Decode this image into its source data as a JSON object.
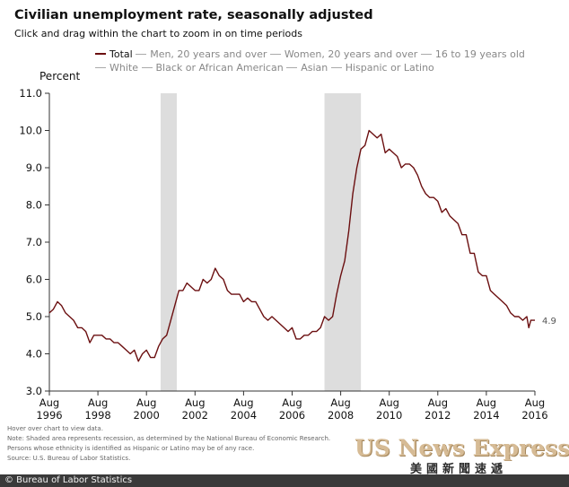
{
  "title": "Civilian unemployment rate, seasonally adjusted",
  "subtitle": "Click and drag within the chart to zoom in on time periods",
  "legend": {
    "row1": [
      {
        "label": "Total",
        "active": true
      },
      {
        "label": "Men, 20 years and over",
        "active": false
      },
      {
        "label": "Women, 20 years and over",
        "active": false
      },
      {
        "label": "16 to 19 years old",
        "active": false
      }
    ],
    "row2": [
      {
        "label": "White",
        "active": false
      },
      {
        "label": "Black or African American",
        "active": false
      },
      {
        "label": "Asian",
        "active": false
      },
      {
        "label": "Hispanic or Latino",
        "active": false
      }
    ]
  },
  "notes": [
    "Hover over chart to view data.",
    "Note: Shaded area represents recession, as determined by the National Bureau of Economic Research.",
    "Persons whose ethnicity is identified as Hispanic or Latino may be of any race.",
    "Source: U.S. Bureau of Labor Statistics."
  ],
  "credit": "© Bureau of Labor Statistics",
  "watermark": {
    "en": "US News Express",
    "cn": "美國新聞速遞"
  },
  "colors": {
    "line": "#6b0f10",
    "recession": "#dddddd",
    "grid": "#cccccc"
  },
  "chart_data": {
    "type": "line",
    "ylabel": "Percent",
    "xlabel": "",
    "ylim": [
      3.0,
      11.0
    ],
    "yticks": [
      "3.0",
      "4.0",
      "5.0",
      "6.0",
      "7.0",
      "8.0",
      "9.0",
      "10.0",
      "11.0"
    ],
    "xlim": [
      "1996-08",
      "2016-08"
    ],
    "xticks": [
      {
        "date": "1996-08",
        "month": "Aug",
        "year": "1996"
      },
      {
        "date": "1998-08",
        "month": "Aug",
        "year": "1998"
      },
      {
        "date": "2000-08",
        "month": "Aug",
        "year": "2000"
      },
      {
        "date": "2002-08",
        "month": "Aug",
        "year": "2002"
      },
      {
        "date": "2004-08",
        "month": "Aug",
        "year": "2004"
      },
      {
        "date": "2006-08",
        "month": "Aug",
        "year": "2006"
      },
      {
        "date": "2008-08",
        "month": "Aug",
        "year": "2008"
      },
      {
        "date": "2010-08",
        "month": "Aug",
        "year": "2010"
      },
      {
        "date": "2012-08",
        "month": "Aug",
        "year": "2012"
      },
      {
        "date": "2014-08",
        "month": "Aug",
        "year": "2014"
      },
      {
        "date": "2016-08",
        "month": "Aug",
        "year": "2016"
      }
    ],
    "recessions": [
      [
        "2001-03",
        "2001-11"
      ],
      [
        "2007-12",
        "2009-06"
      ]
    ],
    "series": [
      {
        "name": "Total",
        "end_label": "4.9",
        "points": [
          [
            "1996-08",
            5.1
          ],
          [
            "1996-10",
            5.2
          ],
          [
            "1996-12",
            5.4
          ],
          [
            "1997-02",
            5.3
          ],
          [
            "1997-04",
            5.1
          ],
          [
            "1997-06",
            5.0
          ],
          [
            "1997-08",
            4.9
          ],
          [
            "1997-10",
            4.7
          ],
          [
            "1997-12",
            4.7
          ],
          [
            "1998-02",
            4.6
          ],
          [
            "1998-04",
            4.3
          ],
          [
            "1998-06",
            4.5
          ],
          [
            "1998-08",
            4.5
          ],
          [
            "1998-10",
            4.5
          ],
          [
            "1998-12",
            4.4
          ],
          [
            "1999-02",
            4.4
          ],
          [
            "1999-04",
            4.3
          ],
          [
            "1999-06",
            4.3
          ],
          [
            "1999-08",
            4.2
          ],
          [
            "1999-10",
            4.1
          ],
          [
            "1999-12",
            4.0
          ],
          [
            "2000-02",
            4.1
          ],
          [
            "2000-04",
            3.8
          ],
          [
            "2000-06",
            4.0
          ],
          [
            "2000-08",
            4.1
          ],
          [
            "2000-10",
            3.9
          ],
          [
            "2000-12",
            3.9
          ],
          [
            "2001-02",
            4.2
          ],
          [
            "2001-04",
            4.4
          ],
          [
            "2001-06",
            4.5
          ],
          [
            "2001-08",
            4.9
          ],
          [
            "2001-10",
            5.3
          ],
          [
            "2001-12",
            5.7
          ],
          [
            "2002-02",
            5.7
          ],
          [
            "2002-04",
            5.9
          ],
          [
            "2002-06",
            5.8
          ],
          [
            "2002-08",
            5.7
          ],
          [
            "2002-10",
            5.7
          ],
          [
            "2002-12",
            6.0
          ],
          [
            "2003-02",
            5.9
          ],
          [
            "2003-04",
            6.0
          ],
          [
            "2003-06",
            6.3
          ],
          [
            "2003-08",
            6.1
          ],
          [
            "2003-10",
            6.0
          ],
          [
            "2003-12",
            5.7
          ],
          [
            "2004-02",
            5.6
          ],
          [
            "2004-04",
            5.6
          ],
          [
            "2004-06",
            5.6
          ],
          [
            "2004-08",
            5.4
          ],
          [
            "2004-10",
            5.5
          ],
          [
            "2004-12",
            5.4
          ],
          [
            "2005-02",
            5.4
          ],
          [
            "2005-04",
            5.2
          ],
          [
            "2005-06",
            5.0
          ],
          [
            "2005-08",
            4.9
          ],
          [
            "2005-10",
            5.0
          ],
          [
            "2005-12",
            4.9
          ],
          [
            "2006-02",
            4.8
          ],
          [
            "2006-04",
            4.7
          ],
          [
            "2006-06",
            4.6
          ],
          [
            "2006-08",
            4.7
          ],
          [
            "2006-10",
            4.4
          ],
          [
            "2006-12",
            4.4
          ],
          [
            "2007-02",
            4.5
          ],
          [
            "2007-04",
            4.5
          ],
          [
            "2007-06",
            4.6
          ],
          [
            "2007-08",
            4.6
          ],
          [
            "2007-10",
            4.7
          ],
          [
            "2007-12",
            5.0
          ],
          [
            "2008-02",
            4.9
          ],
          [
            "2008-04",
            5.0
          ],
          [
            "2008-06",
            5.6
          ],
          [
            "2008-08",
            6.1
          ],
          [
            "2008-10",
            6.5
          ],
          [
            "2008-12",
            7.3
          ],
          [
            "2009-02",
            8.3
          ],
          [
            "2009-04",
            9.0
          ],
          [
            "2009-06",
            9.5
          ],
          [
            "2009-08",
            9.6
          ],
          [
            "2009-10",
            10.0
          ],
          [
            "2009-12",
            9.9
          ],
          [
            "2010-02",
            9.8
          ],
          [
            "2010-04",
            9.9
          ],
          [
            "2010-06",
            9.4
          ],
          [
            "2010-08",
            9.5
          ],
          [
            "2010-10",
            9.4
          ],
          [
            "2010-12",
            9.3
          ],
          [
            "2011-02",
            9.0
          ],
          [
            "2011-04",
            9.1
          ],
          [
            "2011-06",
            9.1
          ],
          [
            "2011-08",
            9.0
          ],
          [
            "2011-10",
            8.8
          ],
          [
            "2011-12",
            8.5
          ],
          [
            "2012-02",
            8.3
          ],
          [
            "2012-04",
            8.2
          ],
          [
            "2012-06",
            8.2
          ],
          [
            "2012-08",
            8.1
          ],
          [
            "2012-10",
            7.8
          ],
          [
            "2012-12",
            7.9
          ],
          [
            "2013-02",
            7.7
          ],
          [
            "2013-04",
            7.6
          ],
          [
            "2013-06",
            7.5
          ],
          [
            "2013-08",
            7.2
          ],
          [
            "2013-10",
            7.2
          ],
          [
            "2013-12",
            6.7
          ],
          [
            "2014-02",
            6.7
          ],
          [
            "2014-04",
            6.2
          ],
          [
            "2014-06",
            6.1
          ],
          [
            "2014-08",
            6.1
          ],
          [
            "2014-10",
            5.7
          ],
          [
            "2014-12",
            5.6
          ],
          [
            "2015-02",
            5.5
          ],
          [
            "2015-04",
            5.4
          ],
          [
            "2015-06",
            5.3
          ],
          [
            "2015-08",
            5.1
          ],
          [
            "2015-10",
            5.0
          ],
          [
            "2015-12",
            5.0
          ],
          [
            "2016-02",
            4.9
          ],
          [
            "2016-04",
            5.0
          ],
          [
            "2016-05",
            4.7
          ],
          [
            "2016-06",
            4.9
          ],
          [
            "2016-08",
            4.9
          ]
        ]
      }
    ]
  }
}
